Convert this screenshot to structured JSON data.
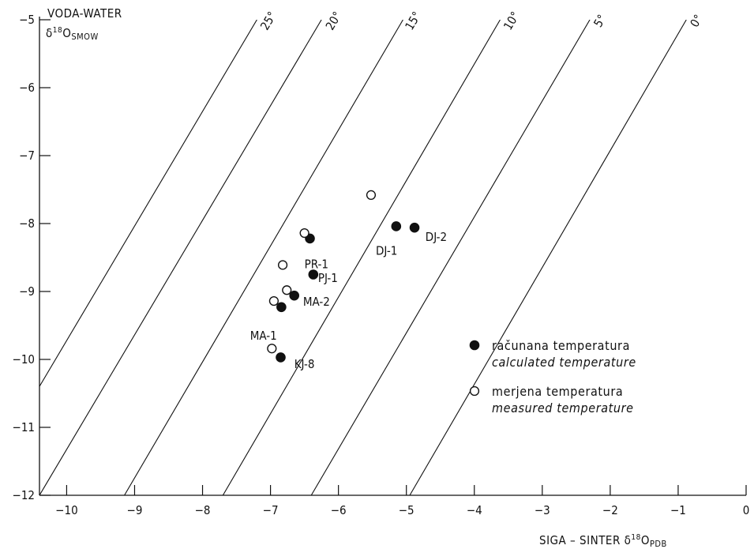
{
  "chart_data": {
    "type": "scatter",
    "ylabel": {
      "line1": "VODA-WATER",
      "line2_main": "δ",
      "line2_sup": "18",
      "line2_rest": "O",
      "line2_sub": "SMOW"
    },
    "xlabel": {
      "text": "SIGA – SINTER",
      "sym": "δ",
      "sup": "18",
      "rest": "O",
      "sub": "PDB"
    },
    "xlim": [
      -10.4,
      0
    ],
    "ylim": [
      -12,
      -5
    ],
    "xticks": [
      -10,
      -9,
      -8,
      -7,
      -6,
      -5,
      -4,
      -3,
      -2,
      -1,
      0
    ],
    "yticks": [
      -5,
      -6,
      -7,
      -8,
      -9,
      -10,
      -11,
      -12
    ],
    "isotherms": [
      {
        "label": "25°",
        "x_at_ymin": -11.35,
        "x_at_ymax": -7.2,
        "label_x": -6.98
      },
      {
        "label": "20°",
        "x_at_ymin": -10.4,
        "x_at_ymax": -6.25,
        "label_x": -6.02
      },
      {
        "label": "15°",
        "x_at_ymin": -9.15,
        "x_at_ymax": -5.05,
        "label_x": -4.85
      },
      {
        "label": "10°",
        "x_at_ymin": -7.7,
        "x_at_ymax": -3.62,
        "label_x": -3.4
      },
      {
        "label": "5°",
        "x_at_ymin": -6.4,
        "x_at_ymax": -2.3,
        "label_x": -2.1
      },
      {
        "label": "0°",
        "x_at_ymin": -4.95,
        "x_at_ymax": -0.88,
        "label_x": -0.68
      }
    ],
    "series": [
      {
        "name_line1": "računana temperatura",
        "name_line2": "calculated temperature",
        "marker": "filled",
        "points": [
          {
            "x": -6.42,
            "y": -8.22
          },
          {
            "x": -6.37,
            "y": -8.75
          },
          {
            "x": -6.65,
            "y": -9.06
          },
          {
            "x": -6.84,
            "y": -9.23
          },
          {
            "x": -6.85,
            "y": -9.97
          },
          {
            "x": -5.15,
            "y": -8.04
          },
          {
            "x": -4.88,
            "y": -8.06
          }
        ]
      },
      {
        "name_line1": "merjena temperatura",
        "name_line2": "measured temperature",
        "marker": "open",
        "points": [
          {
            "x": -6.5,
            "y": -8.14
          },
          {
            "x": -6.82,
            "y": -8.61
          },
          {
            "x": -6.76,
            "y": -8.98
          },
          {
            "x": -6.95,
            "y": -9.14
          },
          {
            "x": -6.98,
            "y": -9.84
          },
          {
            "x": -5.52,
            "y": -7.58
          }
        ]
      }
    ],
    "point_labels": [
      {
        "text": "PR-1",
        "x": -6.5,
        "y": -8.6
      },
      {
        "text": "PJ-1",
        "x": -6.3,
        "y": -8.8
      },
      {
        "text": "MA-2",
        "x": -6.52,
        "y": -9.15
      },
      {
        "text": "MA-1",
        "x": -7.3,
        "y": -9.65
      },
      {
        "text": "KJ-8",
        "x": -6.65,
        "y": -10.07
      },
      {
        "text": "DJ-1",
        "x": -5.45,
        "y": -8.4
      },
      {
        "text": "DJ-2",
        "x": -4.72,
        "y": -8.2
      }
    ],
    "legend_position": "bottom-right",
    "grid": false
  }
}
